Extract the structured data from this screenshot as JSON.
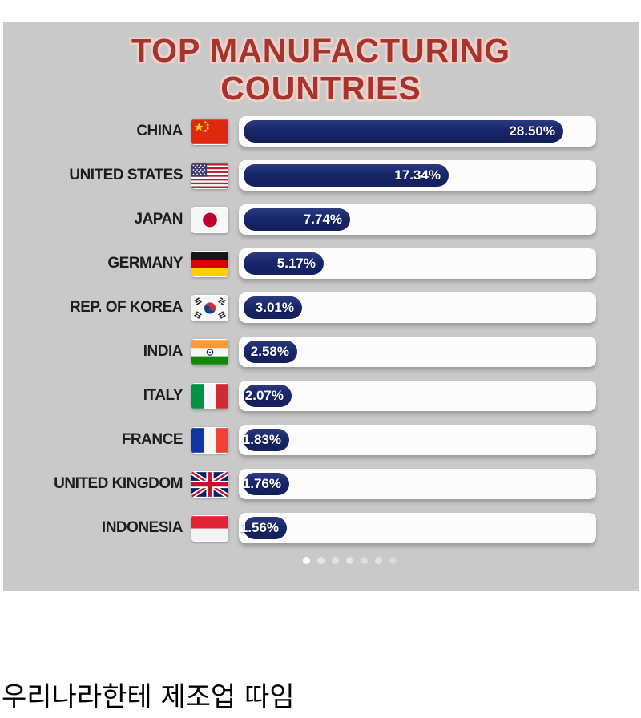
{
  "title": {
    "line1": "TOP MANUFACTURING",
    "line2": "COUNTRIES"
  },
  "caption": "우리나라한테 제조업 따임",
  "colors": {
    "panel_bg": "#c9c9c9",
    "title_red": "#a5342c",
    "title_glow": "#f0d0cb",
    "bar_fill_navy": "#17276b",
    "track_white": "#fcfcfc"
  },
  "chart_data": {
    "type": "bar",
    "orientation": "horizontal",
    "title": "TOP MANUFACTURING COUNTRIES",
    "categories": [
      "CHINA",
      "UNITED STATES",
      "JAPAN",
      "GERMANY",
      "REP. OF KOREA",
      "INDIA",
      "ITALY",
      "FRANCE",
      "UNITED KINGDOM",
      "INDONESIA"
    ],
    "values": [
      28.5,
      17.34,
      7.74,
      5.17,
      3.01,
      2.58,
      2.07,
      1.83,
      1.76,
      1.56
    ],
    "value_labels": [
      "28.50%",
      "17.34%",
      "7.74%",
      "5.17%",
      "3.01%",
      "2.58%",
      "2.07%",
      "1.83%",
      "1.76%",
      "1.56%"
    ],
    "flags": [
      "china",
      "united-states",
      "japan",
      "germany",
      "south-korea",
      "india",
      "italy",
      "france",
      "united-kingdom",
      "indonesia"
    ],
    "unit": "%",
    "xlim": [
      0,
      30
    ],
    "grid": false,
    "legend": false
  },
  "pagination": {
    "dot_count": 7,
    "active_index": 0
  }
}
